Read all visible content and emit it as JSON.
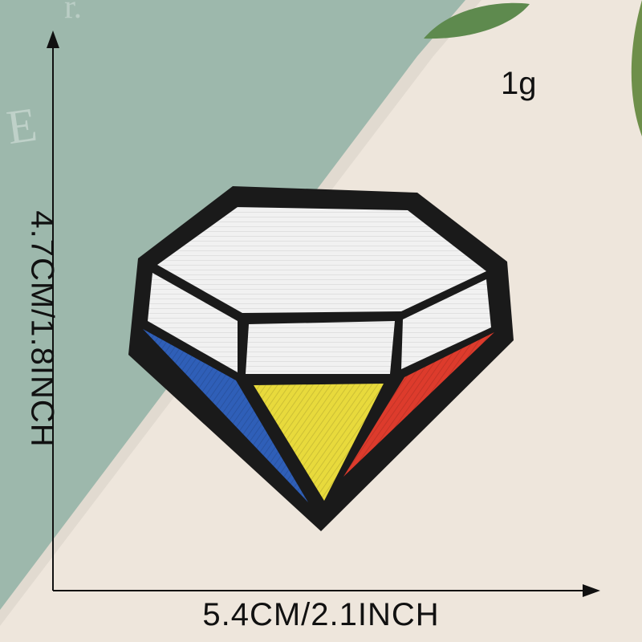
{
  "photo": {
    "subject": "diamond-embroidered-patch",
    "colors": {
      "mint_background": "#9DB8AC",
      "cream_background": "#EEE6DC",
      "border": "#1A1A1A",
      "white_facet": "#F1F1F1",
      "blue_facet": "#2F5FB8",
      "yellow_facet": "#E8DA3C",
      "red_facet": "#DD3B2C"
    }
  },
  "labels": {
    "weight": "1g",
    "width": "5.4CM/2.1INCH",
    "height": "4.7CM/1.8INCH"
  }
}
